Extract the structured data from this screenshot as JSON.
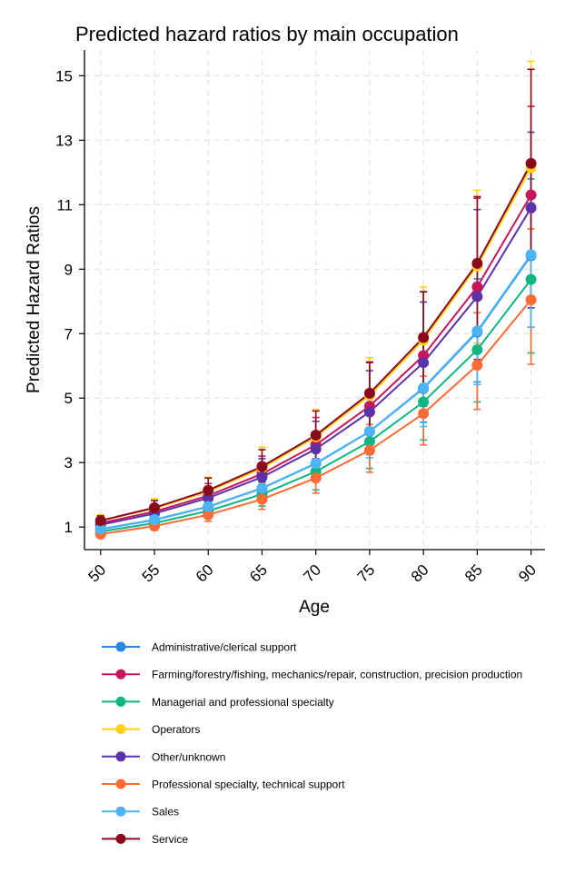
{
  "chart_data": {
    "type": "line",
    "title": "Predicted hazard ratios by main occupation",
    "xlabel": "Age",
    "ylabel": "Predicted Hazard Ratios",
    "x": [
      50,
      55,
      60,
      65,
      70,
      75,
      80,
      85,
      90
    ],
    "x_ticks": [
      "50",
      "55",
      "60",
      "65",
      "70",
      "75",
      "80",
      "85",
      "90"
    ],
    "y_ticks": [
      "1",
      "3",
      "5",
      "7",
      "9",
      "11",
      "13",
      "15"
    ],
    "xlim": [
      48.5,
      91.3
    ],
    "ylim": [
      0.3,
      15.8
    ],
    "grid": true,
    "legend_position": "bottom",
    "series": [
      {
        "name": "Administrative/clerical support",
        "color": "#2585e8",
        "values": [
          0.93,
          1.22,
          1.63,
          2.2,
          2.97,
          3.96,
          5.3,
          7.05,
          9.42
        ],
        "lower": [
          0.85,
          1.1,
          1.45,
          1.9,
          2.5,
          3.25,
          4.25,
          5.5,
          7.2
        ],
        "upper": [
          1.02,
          1.35,
          1.82,
          2.5,
          3.45,
          4.7,
          6.4,
          8.7,
          11.8
        ]
      },
      {
        "name": "Farming/forestry/fishing, mechanics/repair, construction, precision production",
        "color": "#c8165e",
        "values": [
          1.12,
          1.48,
          1.97,
          2.65,
          3.55,
          4.75,
          6.32,
          8.45,
          11.3
        ],
        "lower": [
          1.0,
          1.28,
          1.65,
          2.15,
          2.8,
          3.65,
          4.75,
          6.2,
          8.1
        ],
        "upper": [
          1.26,
          1.7,
          2.35,
          3.2,
          4.4,
          6.1,
          8.3,
          11.2,
          14.05
        ]
      },
      {
        "name": "Managerial and professional specialty",
        "color": "#10b582",
        "values": [
          0.86,
          1.12,
          1.5,
          2.02,
          2.72,
          3.65,
          4.88,
          6.5,
          8.68
        ],
        "lower": [
          0.76,
          0.97,
          1.26,
          1.65,
          2.15,
          2.82,
          3.7,
          4.88,
          6.4
        ],
        "upper": [
          0.96,
          1.28,
          1.75,
          2.4,
          3.35,
          4.55,
          6.2,
          8.35,
          11.05
        ]
      },
      {
        "name": "Operators",
        "color": "#ffd013",
        "values": [
          1.2,
          1.58,
          2.1,
          2.83,
          3.8,
          5.08,
          6.8,
          9.1,
          12.15
        ],
        "lower": [
          1.08,
          1.38,
          1.78,
          2.35,
          3.05,
          3.95,
          5.15,
          6.7,
          8.8
        ],
        "upper": [
          1.38,
          1.88,
          2.55,
          3.48,
          4.65,
          6.25,
          8.45,
          11.45,
          15.45
        ]
      },
      {
        "name": "Other/unknown",
        "color": "#5b32a8",
        "values": [
          1.07,
          1.42,
          1.9,
          2.55,
          3.42,
          4.57,
          6.1,
          8.15,
          10.9
        ],
        "lower": [
          0.95,
          1.22,
          1.58,
          2.08,
          2.72,
          3.55,
          4.6,
          6.0,
          7.8
        ],
        "upper": [
          1.2,
          1.64,
          2.25,
          3.12,
          4.28,
          5.85,
          7.98,
          10.85,
          13.25
        ]
      },
      {
        "name": "Professional specialty, technical support",
        "color": "#ff6a35",
        "values": [
          0.78,
          1.03,
          1.38,
          1.86,
          2.52,
          3.38,
          4.52,
          6.02,
          8.05
        ],
        "lower": [
          0.7,
          0.91,
          1.18,
          1.55,
          2.05,
          2.7,
          3.55,
          4.65,
          6.05
        ],
        "upper": [
          0.88,
          1.16,
          1.6,
          2.25,
          3.08,
          4.18,
          5.68,
          7.65,
          10.25
        ]
      },
      {
        "name": "Sales",
        "color": "#4db4f5",
        "values": [
          0.94,
          1.23,
          1.64,
          2.21,
          2.98,
          3.97,
          5.32,
          7.08,
          9.45
        ],
        "lower": [
          0.84,
          1.08,
          1.4,
          1.85,
          2.42,
          3.15,
          4.12,
          5.42,
          7.2
        ],
        "upper": [
          1.05,
          1.4,
          1.9,
          2.6,
          3.6,
          4.95,
          6.7,
          9.05,
          12.05
        ]
      },
      {
        "name": "Service",
        "color": "#8a0a1c",
        "values": [
          1.2,
          1.6,
          2.14,
          2.88,
          3.85,
          5.15,
          6.88,
          9.18,
          12.28
        ],
        "lower": [
          1.08,
          1.4,
          1.82,
          2.4,
          3.12,
          4.08,
          5.35,
          7.0,
          9.3
        ],
        "upper": [
          1.35,
          1.82,
          2.52,
          3.4,
          4.6,
          6.12,
          8.3,
          11.25,
          15.2
        ]
      }
    ]
  }
}
